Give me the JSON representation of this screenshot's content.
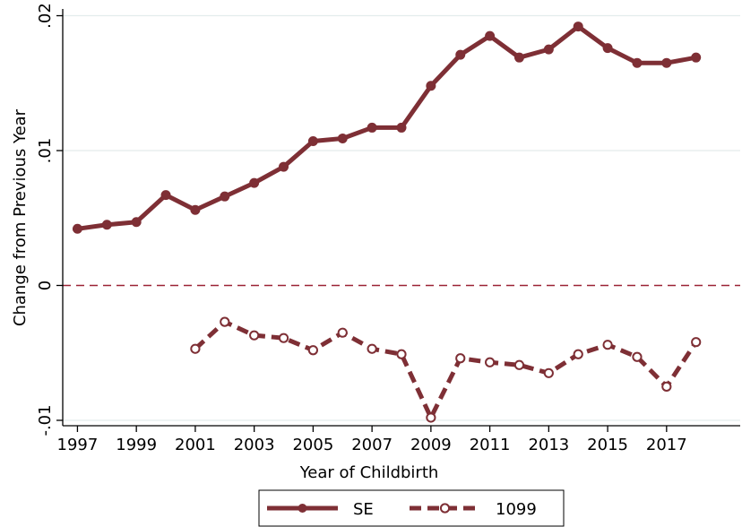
{
  "chart_data": {
    "type": "line",
    "title": "",
    "xlabel": "Year of Childbirth",
    "ylabel": "Change from Previous Year",
    "xlim": [
      1996.5,
      2019.5
    ],
    "ylim": [
      -0.0104,
      0.0205
    ],
    "x_ticks": [
      1997,
      1999,
      2001,
      2003,
      2005,
      2007,
      2009,
      2011,
      2013,
      2015,
      2017
    ],
    "x_tick_labels": [
      "1997",
      "1999",
      "2001",
      "2003",
      "2005",
      "2007",
      "2009",
      "2011",
      "2013",
      "2015",
      "2017"
    ],
    "y_ticks": [
      -0.01,
      0,
      0.01,
      0.02
    ],
    "y_tick_labels": [
      "-.01",
      "0",
      ".01",
      ".02"
    ],
    "grid": "horizontal",
    "reference_line": {
      "y": 0,
      "style": "dashed",
      "color": "#9b2335"
    },
    "legend_position": "bottom",
    "series": [
      {
        "name": "SE",
        "style": "solid",
        "marker": "filled-circle",
        "color": "#7e2f35",
        "x": [
          1997,
          1998,
          1999,
          2000,
          2001,
          2002,
          2003,
          2004,
          2005,
          2006,
          2007,
          2008,
          2009,
          2010,
          2011,
          2012,
          2013,
          2014,
          2015,
          2016,
          2017,
          2018
        ],
        "values": [
          0.0042,
          0.0045,
          0.0047,
          0.0067,
          0.0056,
          0.0066,
          0.0076,
          0.0088,
          0.0107,
          0.0109,
          0.0117,
          0.0117,
          0.0148,
          0.0171,
          0.0185,
          0.0169,
          0.0175,
          0.0192,
          0.0176,
          0.0165,
          0.0165,
          0.0169
        ]
      },
      {
        "name": "1099",
        "style": "dashed",
        "marker": "hollow-circle",
        "color": "#7e2f35",
        "x": [
          2001,
          2002,
          2003,
          2004,
          2005,
          2006,
          2007,
          2008,
          2009,
          2010,
          2011,
          2012,
          2013,
          2014,
          2015,
          2016,
          2017,
          2018
        ],
        "values": [
          -0.0047,
          -0.0027,
          -0.0037,
          -0.0039,
          -0.0048,
          -0.0035,
          -0.0047,
          -0.0051,
          -0.0098,
          -0.0054,
          -0.0057,
          -0.0059,
          -0.0065,
          -0.0051,
          -0.0044,
          -0.0053,
          -0.0075,
          -0.0042
        ]
      }
    ]
  }
}
